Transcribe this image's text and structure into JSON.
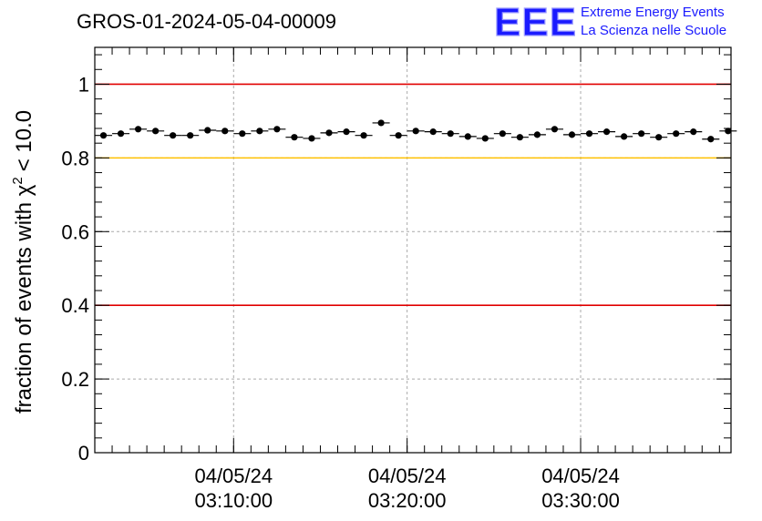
{
  "chart_data": {
    "type": "scatter",
    "title": "GROS-01-2024-05-04-00009",
    "ylabel_main": "fraction of events with χ",
    "ylabel_sup": "2",
    "ylabel_tail": "< 10.0",
    "ylim": [
      0,
      1.1
    ],
    "yticks": [
      {
        "value": 0,
        "label": "0"
      },
      {
        "value": 0.2,
        "label": "0.2"
      },
      {
        "value": 0.4,
        "label": "0.4"
      },
      {
        "value": 0.6,
        "label": "0.6"
      },
      {
        "value": 0.8,
        "label": "0.8"
      },
      {
        "value": 1,
        "label": "1"
      }
    ],
    "xlim": [
      "2024-05-04 03:02:00",
      "2024-05-04 03:38:40"
    ],
    "xticks": [
      {
        "value": "2024-05-04 03:10:00",
        "date": "04/05/24",
        "time": "03:10:00"
      },
      {
        "value": "2024-05-04 03:20:00",
        "date": "04/05/24",
        "time": "03:20:00"
      },
      {
        "value": "2024-05-04 03:30:00",
        "date": "04/05/24",
        "time": "03:30:00"
      }
    ],
    "grid": true,
    "reference_lines": [
      {
        "y": 1.0,
        "color": "#e00000"
      },
      {
        "y": 0.8,
        "color": "#ffc000"
      },
      {
        "y": 0.4,
        "color": "#e00000"
      }
    ],
    "series": [
      {
        "color": "#000000",
        "bin_width_seconds": 60,
        "x": [
          "2024-05-04 03:02:00",
          "2024-05-04 03:03:00",
          "2024-05-04 03:04:00",
          "2024-05-04 03:05:00",
          "2024-05-04 03:06:00",
          "2024-05-04 03:07:00",
          "2024-05-04 03:08:00",
          "2024-05-04 03:09:00",
          "2024-05-04 03:10:00",
          "2024-05-04 03:11:00",
          "2024-05-04 03:12:00",
          "2024-05-04 03:13:00",
          "2024-05-04 03:14:00",
          "2024-05-04 03:15:00",
          "2024-05-04 03:16:00",
          "2024-05-04 03:17:00",
          "2024-05-04 03:18:00",
          "2024-05-04 03:19:00",
          "2024-05-04 03:20:00",
          "2024-05-04 03:21:00",
          "2024-05-04 03:22:00",
          "2024-05-04 03:23:00",
          "2024-05-04 03:24:00",
          "2024-05-04 03:25:00",
          "2024-05-04 03:26:00",
          "2024-05-04 03:27:00",
          "2024-05-04 03:28:00",
          "2024-05-04 03:29:00",
          "2024-05-04 03:30:00",
          "2024-05-04 03:31:00",
          "2024-05-04 03:32:00",
          "2024-05-04 03:33:00",
          "2024-05-04 03:34:00",
          "2024-05-04 03:35:00",
          "2024-05-04 03:36:00",
          "2024-05-04 03:37:00"
        ],
        "y": [
          0.861,
          0.866,
          0.878,
          0.873,
          0.861,
          0.861,
          0.875,
          0.873,
          0.866,
          0.873,
          0.878,
          0.856,
          0.853,
          0.868,
          0.871,
          0.861,
          0.895,
          0.861,
          0.873,
          0.871,
          0.866,
          0.858,
          0.853,
          0.866,
          0.856,
          0.863,
          0.878,
          0.863,
          0.866,
          0.871,
          0.858,
          0.866,
          0.856,
          0.866,
          0.871,
          0.851
        ]
      }
    ],
    "last_point": {
      "x": "2024-05-04 03:38:00",
      "y": 0.873
    }
  },
  "logo": {
    "text": "EEE",
    "line1": "Extreme Energy Events",
    "line2": "La Scienza nelle Scuole",
    "color": "#1a1aff"
  }
}
